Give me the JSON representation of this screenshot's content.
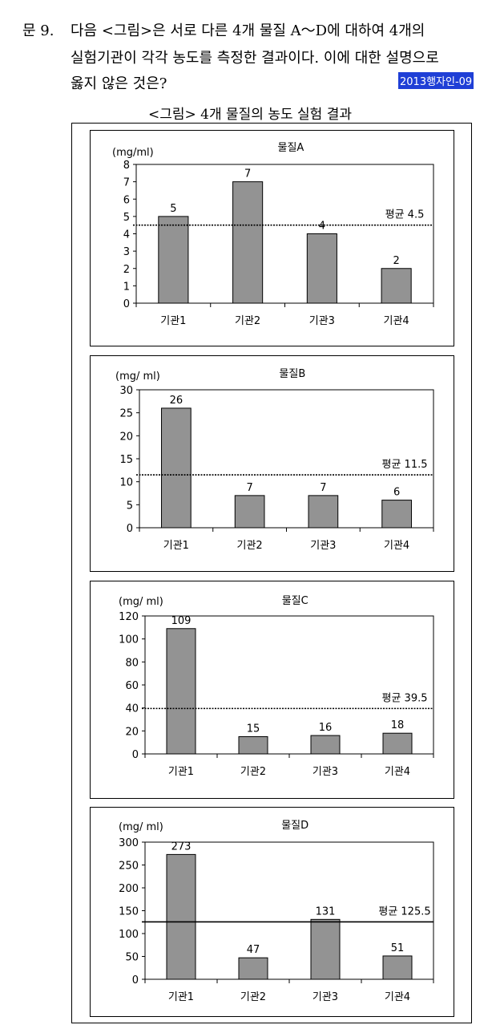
{
  "question": {
    "number": "문  9.",
    "line1": "다음 <그림>은 서로 다른 4개 물질 A～D에 대하여 4개의",
    "line2": "실험기관이 각각 농도를 측정한 결과이다. 이에 대한 설명으로",
    "line3": "옳지 않은 것은?",
    "tag": "2013행자인-09"
  },
  "figure_title": "<그림> 4개 물질의 농도 실험 결과",
  "chart_data": [
    {
      "type": "bar",
      "title": "물질A",
      "ylabel": "(mg/ml)",
      "categories": [
        "기관1",
        "기관2",
        "기관3",
        "기관4"
      ],
      "values": [
        5,
        7,
        4,
        2
      ],
      "ylim": [
        0,
        8
      ],
      "yticks": [
        0,
        1,
        2,
        3,
        4,
        5,
        6,
        7,
        8
      ],
      "mean": 4.5,
      "mean_label": "평균 4.5",
      "mean_line_style": "dotted"
    },
    {
      "type": "bar",
      "title": "물질B",
      "ylabel": "(mg/ ml)",
      "categories": [
        "기관1",
        "기관2",
        "기관3",
        "기관4"
      ],
      "values": [
        26,
        7,
        7,
        6
      ],
      "ylim": [
        0,
        30
      ],
      "yticks": [
        0,
        5,
        10,
        15,
        20,
        25,
        30
      ],
      "mean": 11.5,
      "mean_label": "평균 11.5",
      "mean_line_style": "dotted"
    },
    {
      "type": "bar",
      "title": "물질C",
      "ylabel": "(mg/ ml)",
      "categories": [
        "기관1",
        "기관2",
        "기관3",
        "기관4"
      ],
      "values": [
        109,
        15,
        16,
        18
      ],
      "ylim": [
        0,
        120
      ],
      "yticks": [
        0,
        20,
        40,
        60,
        80,
        100,
        120
      ],
      "mean": 39.5,
      "mean_label": "평균 39.5",
      "mean_line_style": "dotted"
    },
    {
      "type": "bar",
      "title": "물질D",
      "ylabel": "(mg/ ml)",
      "categories": [
        "기관1",
        "기관2",
        "기관3",
        "기관4"
      ],
      "values": [
        273,
        47,
        131,
        51
      ],
      "ylim": [
        0,
        300
      ],
      "yticks": [
        0,
        50,
        100,
        150,
        200,
        250,
        300
      ],
      "mean": 125.5,
      "mean_label": "평균 125.5",
      "mean_line_style": "solid"
    }
  ]
}
